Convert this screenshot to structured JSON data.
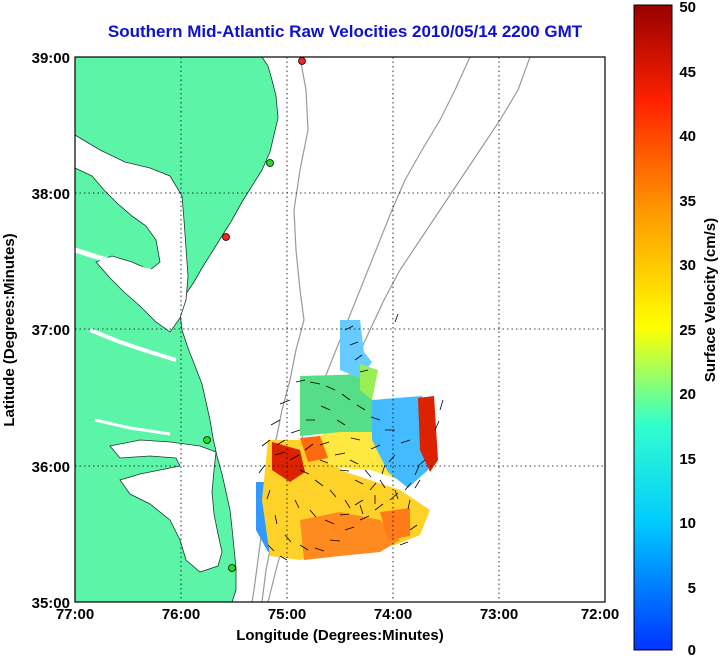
{
  "title": "Southern Mid-Atlantic Raw Velocities 2010/05/14 2200 GMT",
  "x_axis": {
    "label": "Longitude (Degrees:Minutes)",
    "ticks": [
      "77:00",
      "76:00",
      "75:00",
      "74:00",
      "73:00",
      "72:00"
    ]
  },
  "y_axis": {
    "label": "Latitude (Degrees:Minutes)",
    "ticks": [
      "39:00",
      "38:00",
      "37:00",
      "36:00",
      "35:00"
    ]
  },
  "colorbar": {
    "label": "Surface Velocity (cm/s)",
    "ticks": [
      "50",
      "45",
      "40",
      "35",
      "30",
      "25",
      "20",
      "15",
      "10",
      "5",
      "0"
    ],
    "range": [
      0,
      50
    ],
    "colors": [
      "#0033ff",
      "#00ccff",
      "#33ffcc",
      "#ffff00",
      "#ff9900",
      "#ff2200",
      "#990000"
    ]
  },
  "style": {
    "land_color": "#5cf5a8",
    "bathymetry_color": "#9a9a9a",
    "grid": "dotted"
  },
  "stations": [
    {
      "color": "#ff2020"
    },
    {
      "color": "#22dd22"
    },
    {
      "color": "#ff2020"
    },
    {
      "color": "#22dd22"
    },
    {
      "color": "#22dd22"
    }
  ]
}
